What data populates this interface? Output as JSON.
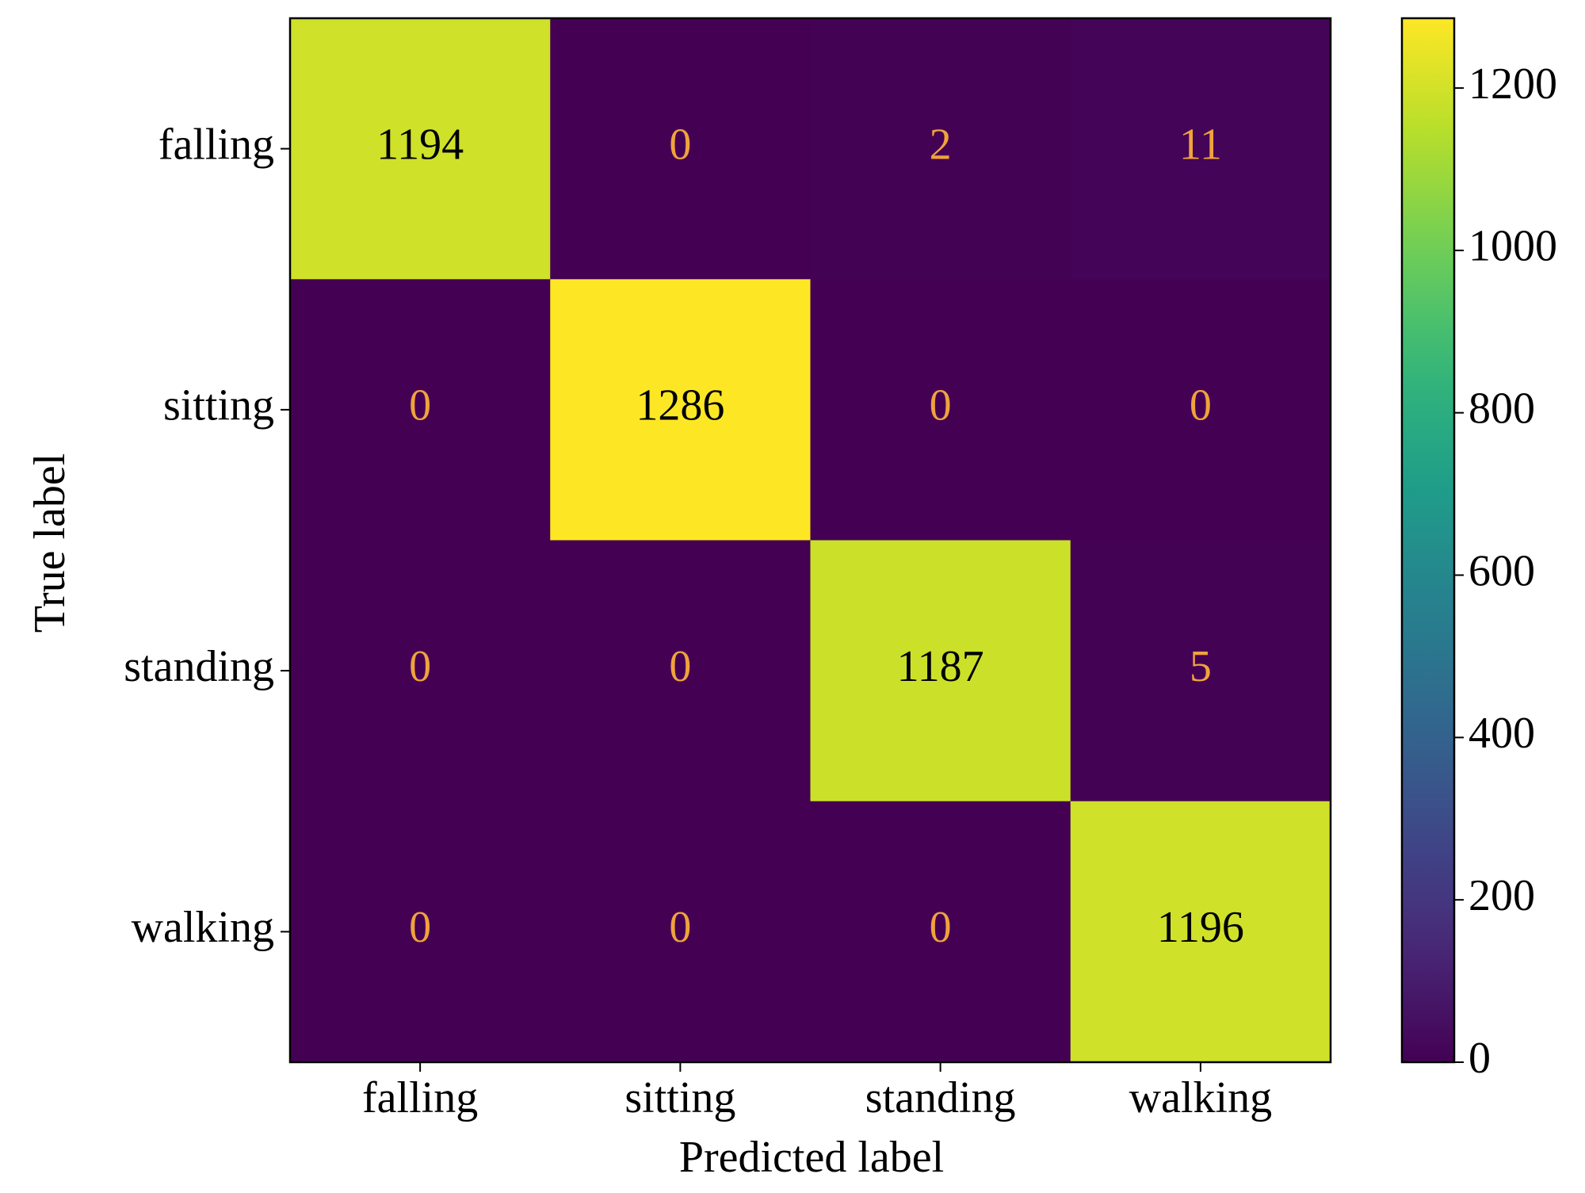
{
  "chart_data": {
    "type": "heatmap",
    "x_label": "Predicted label",
    "y_label": "True label",
    "x_categories": [
      "falling",
      "sitting",
      "standing",
      "walking"
    ],
    "y_categories": [
      "falling",
      "sitting",
      "standing",
      "walking"
    ],
    "values": [
      [
        1194,
        0,
        2,
        11
      ],
      [
        0,
        1286,
        0,
        0
      ],
      [
        0,
        0,
        1187,
        5
      ],
      [
        0,
        0,
        0,
        1196
      ]
    ],
    "colormap": "viridis",
    "text_colors": [
      "#f0a33c",
      "#000000"
    ],
    "clim": [
      0,
      1286
    ],
    "cticks": [
      0,
      200,
      400,
      600,
      800,
      1000,
      1200
    ]
  }
}
